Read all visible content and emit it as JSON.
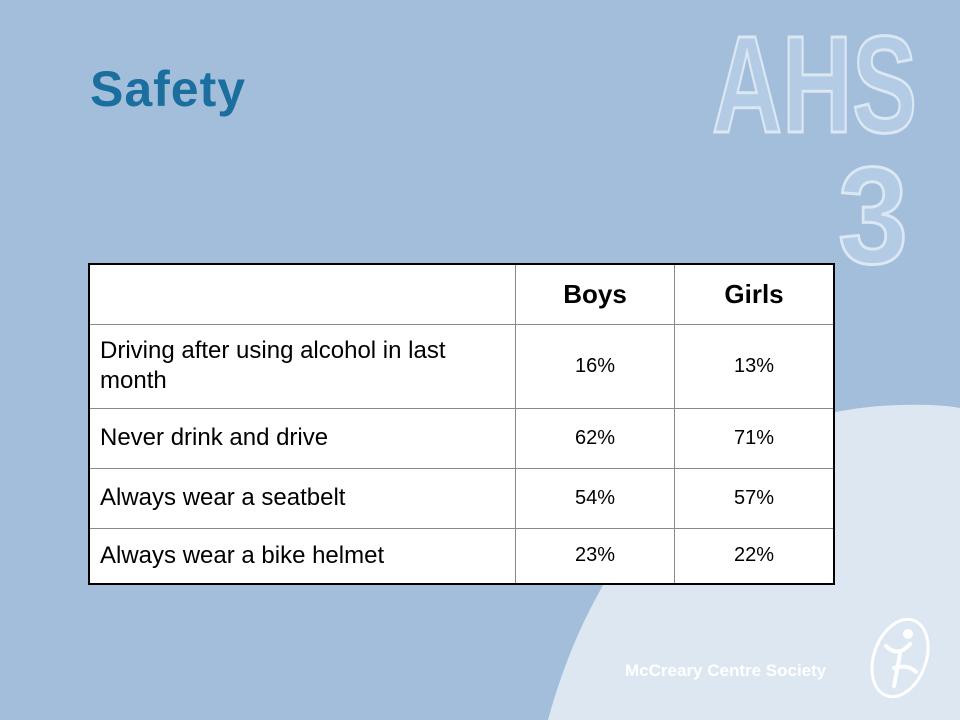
{
  "slide": {
    "title": "Safety",
    "logo_text": "AHS 3",
    "logo_line1": "AHS",
    "logo_line2": "3",
    "footer": "McCreary Centre Society"
  },
  "table": {
    "headers": [
      "",
      "Boys",
      "Girls"
    ],
    "rows": [
      {
        "label": "Driving after using alcohol in last month",
        "boys": "16%",
        "girls": "13%"
      },
      {
        "label": "Never drink and drive",
        "boys": "62%",
        "girls": "71%"
      },
      {
        "label": "Always wear a seatbelt",
        "boys": "54%",
        "girls": "57%"
      },
      {
        "label": "Always wear a bike helmet",
        "boys": "23%",
        "girls": "22%"
      }
    ]
  },
  "colors": {
    "background": "#a3bedb",
    "curve": "#dde7f2",
    "title": "#1a6f9f",
    "footer": "#ffffff"
  }
}
